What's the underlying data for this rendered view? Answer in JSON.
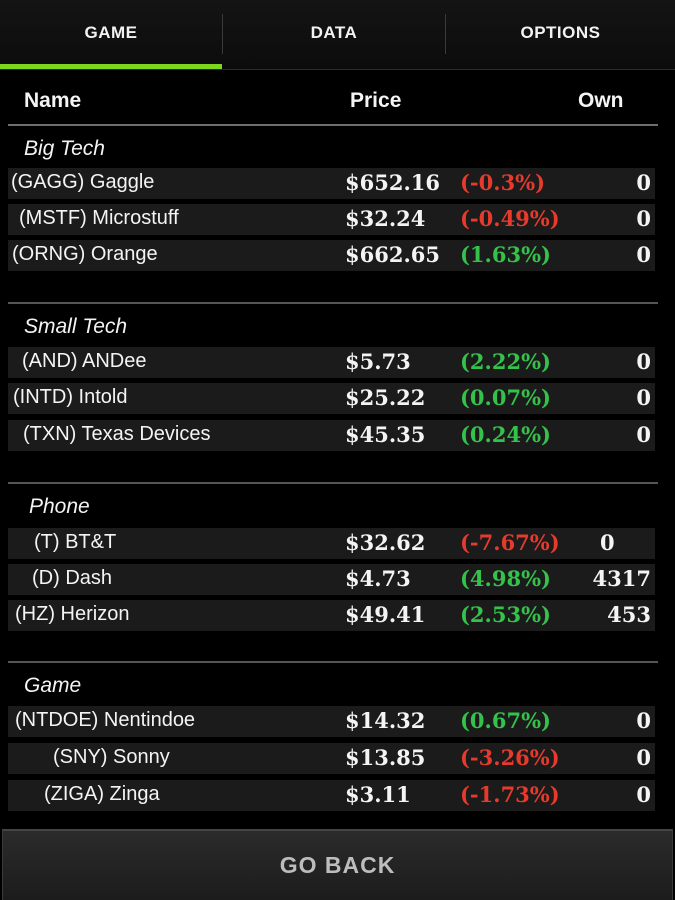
{
  "tabs": [
    {
      "label": "GAME"
    },
    {
      "label": "DATA"
    },
    {
      "label": "OPTIONS"
    }
  ],
  "accent_color": "#7ed61f",
  "negative_color": "#e53a2c",
  "positive_color": "#34c24b",
  "header": {
    "name": "Name",
    "price": "Price",
    "own": "Own"
  },
  "sections": [
    {
      "title": "Big Tech",
      "rows": [
        {
          "name": "(GAGG) Gaggle",
          "price": "$652.16",
          "change": "(-0.3%)",
          "own": "0"
        },
        {
          "name": "(MSTF) Microstuff",
          "price": "$32.24",
          "change": "(-0.49%)",
          "own": "0"
        },
        {
          "name": "(ORNG) Orange",
          "price": "$662.65",
          "change": "(1.63%)",
          "own": "0"
        }
      ]
    },
    {
      "title": "Small Tech",
      "rows": [
        {
          "name": "(AND) ANDee",
          "price": "$5.73",
          "change": "(2.22%)",
          "own": "0"
        },
        {
          "name": "(INTD) Intold",
          "price": "$25.22",
          "change": "(0.07%)",
          "own": "0"
        },
        {
          "name": "(TXN) Texas Devices",
          "price": "$45.35",
          "change": "(0.24%)",
          "own": "0"
        }
      ]
    },
    {
      "title": "Phone",
      "rows": [
        {
          "name": "(T) BT&T",
          "price": "$32.62",
          "change": "(-7.67%)",
          "own": "0"
        },
        {
          "name": "(D) Dash",
          "price": "$4.73",
          "change": "(4.98%)",
          "own": "4317"
        },
        {
          "name": "(HZ) Herizon",
          "price": "$49.41",
          "change": "(2.53%)",
          "own": "453"
        }
      ]
    },
    {
      "title": "Game",
      "rows": [
        {
          "name": "(NTDOE) Nentindoe",
          "price": "$14.32",
          "change": "(0.67%)",
          "own": "0"
        },
        {
          "name": "(SNY) Sonny",
          "price": "$13.85",
          "change": "(-3.26%)",
          "own": "0"
        },
        {
          "name": "(ZIGA) Zinga",
          "price": "$3.11",
          "change": "(-1.73%)",
          "own": "0"
        }
      ]
    }
  ],
  "footer": {
    "go_back_label": "GO BACK"
  }
}
